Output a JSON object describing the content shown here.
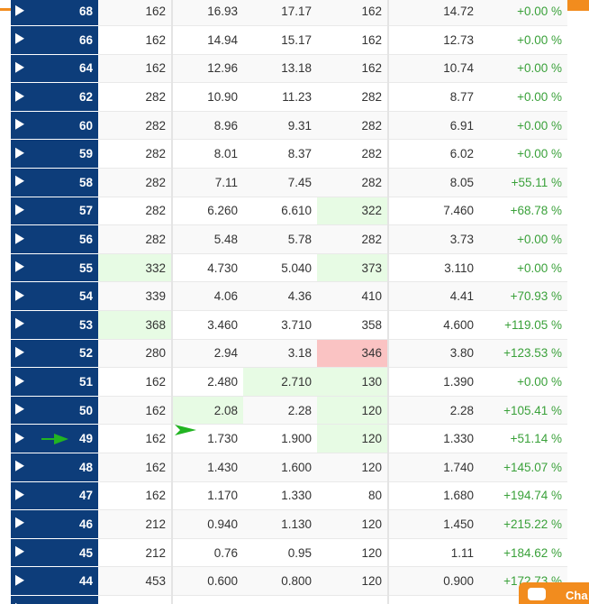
{
  "chat": {
    "label": "Cha"
  },
  "columns": [
    "id",
    "c1",
    "c2",
    "c3",
    "c4",
    "c5",
    "pct"
  ],
  "rows": [
    {
      "id": "68",
      "c1": "162",
      "c2": "16.93",
      "c3": "17.17",
      "c4": "162",
      "c5": "14.72",
      "pct": "+0.00 %"
    },
    {
      "id": "66",
      "c1": "162",
      "c2": "14.94",
      "c3": "15.17",
      "c4": "162",
      "c5": "12.73",
      "pct": "+0.00 %"
    },
    {
      "id": "64",
      "c1": "162",
      "c2": "12.96",
      "c3": "13.18",
      "c4": "162",
      "c5": "10.74",
      "pct": "+0.00 %"
    },
    {
      "id": "62",
      "c1": "282",
      "c2": "10.90",
      "c3": "11.23",
      "c4": "282",
      "c5": "8.77",
      "pct": "+0.00 %"
    },
    {
      "id": "60",
      "c1": "282",
      "c2": "8.96",
      "c3": "9.31",
      "c4": "282",
      "c5": "6.91",
      "pct": "+0.00 %"
    },
    {
      "id": "59",
      "c1": "282",
      "c2": "8.01",
      "c3": "8.37",
      "c4": "282",
      "c5": "6.02",
      "pct": "+0.00 %"
    },
    {
      "id": "58",
      "c1": "282",
      "c2": "7.11",
      "c3": "7.45",
      "c4": "282",
      "c5": "8.05",
      "pct": "+55.11 %"
    },
    {
      "id": "57",
      "c1": "282",
      "c2": "6.260",
      "c3": "6.610",
      "c4": "322",
      "c5": "7.460",
      "pct": "+68.78 %"
    },
    {
      "id": "56",
      "c1": "282",
      "c2": "5.48",
      "c3": "5.78",
      "c4": "282",
      "c5": "3.73",
      "pct": "+0.00 %"
    },
    {
      "id": "55",
      "c1": "332",
      "c2": "4.730",
      "c3": "5.040",
      "c4": "373",
      "c5": "3.110",
      "pct": "+0.00 %"
    },
    {
      "id": "54",
      "c1": "339",
      "c2": "4.06",
      "c3": "4.36",
      "c4": "410",
      "c5": "4.41",
      "pct": "+70.93 %"
    },
    {
      "id": "53",
      "c1": "368",
      "c2": "3.460",
      "c3": "3.710",
      "c4": "358",
      "c5": "4.600",
      "pct": "+119.05 %"
    },
    {
      "id": "52",
      "c1": "280",
      "c2": "2.94",
      "c3": "3.18",
      "c4": "346",
      "c5": "3.80",
      "pct": "+123.53 %"
    },
    {
      "id": "51",
      "c1": "162",
      "c2": "2.480",
      "c3": "2.710",
      "c4": "130",
      "c5": "1.390",
      "pct": "+0.00 %"
    },
    {
      "id": "50",
      "c1": "162",
      "c2": "2.08",
      "c3": "2.28",
      "c4": "120",
      "c5": "2.28",
      "pct": "+105.41 %"
    },
    {
      "id": "49",
      "c1": "162",
      "c2": "1.730",
      "c3": "1.900",
      "c4": "120",
      "c5": "1.330",
      "pct": "+51.14 %"
    },
    {
      "id": "48",
      "c1": "162",
      "c2": "1.430",
      "c3": "1.600",
      "c4": "120",
      "c5": "1.740",
      "pct": "+145.07 %"
    },
    {
      "id": "47",
      "c1": "162",
      "c2": "1.170",
      "c3": "1.330",
      "c4": "80",
      "c5": "1.680",
      "pct": "+194.74 %"
    },
    {
      "id": "46",
      "c1": "212",
      "c2": "0.940",
      "c3": "1.130",
      "c4": "120",
      "c5": "1.450",
      "pct": "+215.22 %"
    },
    {
      "id": "45",
      "c1": "212",
      "c2": "0.76",
      "c3": "0.95",
      "c4": "120",
      "c5": "1.11",
      "pct": "+184.62 %"
    },
    {
      "id": "44",
      "c1": "453",
      "c2": "0.600",
      "c3": "0.800",
      "c4": "120",
      "c5": "0.900",
      "pct": "+172.73 %"
    },
    {
      "id": "",
      "c1": "",
      "c2": "",
      "c3": "",
      "c4": "",
      "c5": "",
      "pct": ""
    }
  ],
  "highlights": {
    "57": {
      "c4": "green"
    },
    "55": {
      "c1": "green",
      "c4": "green"
    },
    "53": {
      "c1": "green"
    },
    "52": {
      "c4": "red"
    },
    "51": {
      "c3": "green",
      "c4": "green"
    },
    "50": {
      "c2": "green",
      "c4": "green"
    },
    "49": {
      "c4": "green"
    }
  },
  "colors": {
    "label_bg": "#0d3d7a",
    "accent_orange": "#f28c1e",
    "header_blue": "#1d5fa8",
    "pct_green": "#3aa13a",
    "highlight_green": "#e7fbe4",
    "highlight_red": "#fac3c3",
    "arrow_green": "#22b422"
  },
  "markers": {
    "current_row": "49"
  }
}
